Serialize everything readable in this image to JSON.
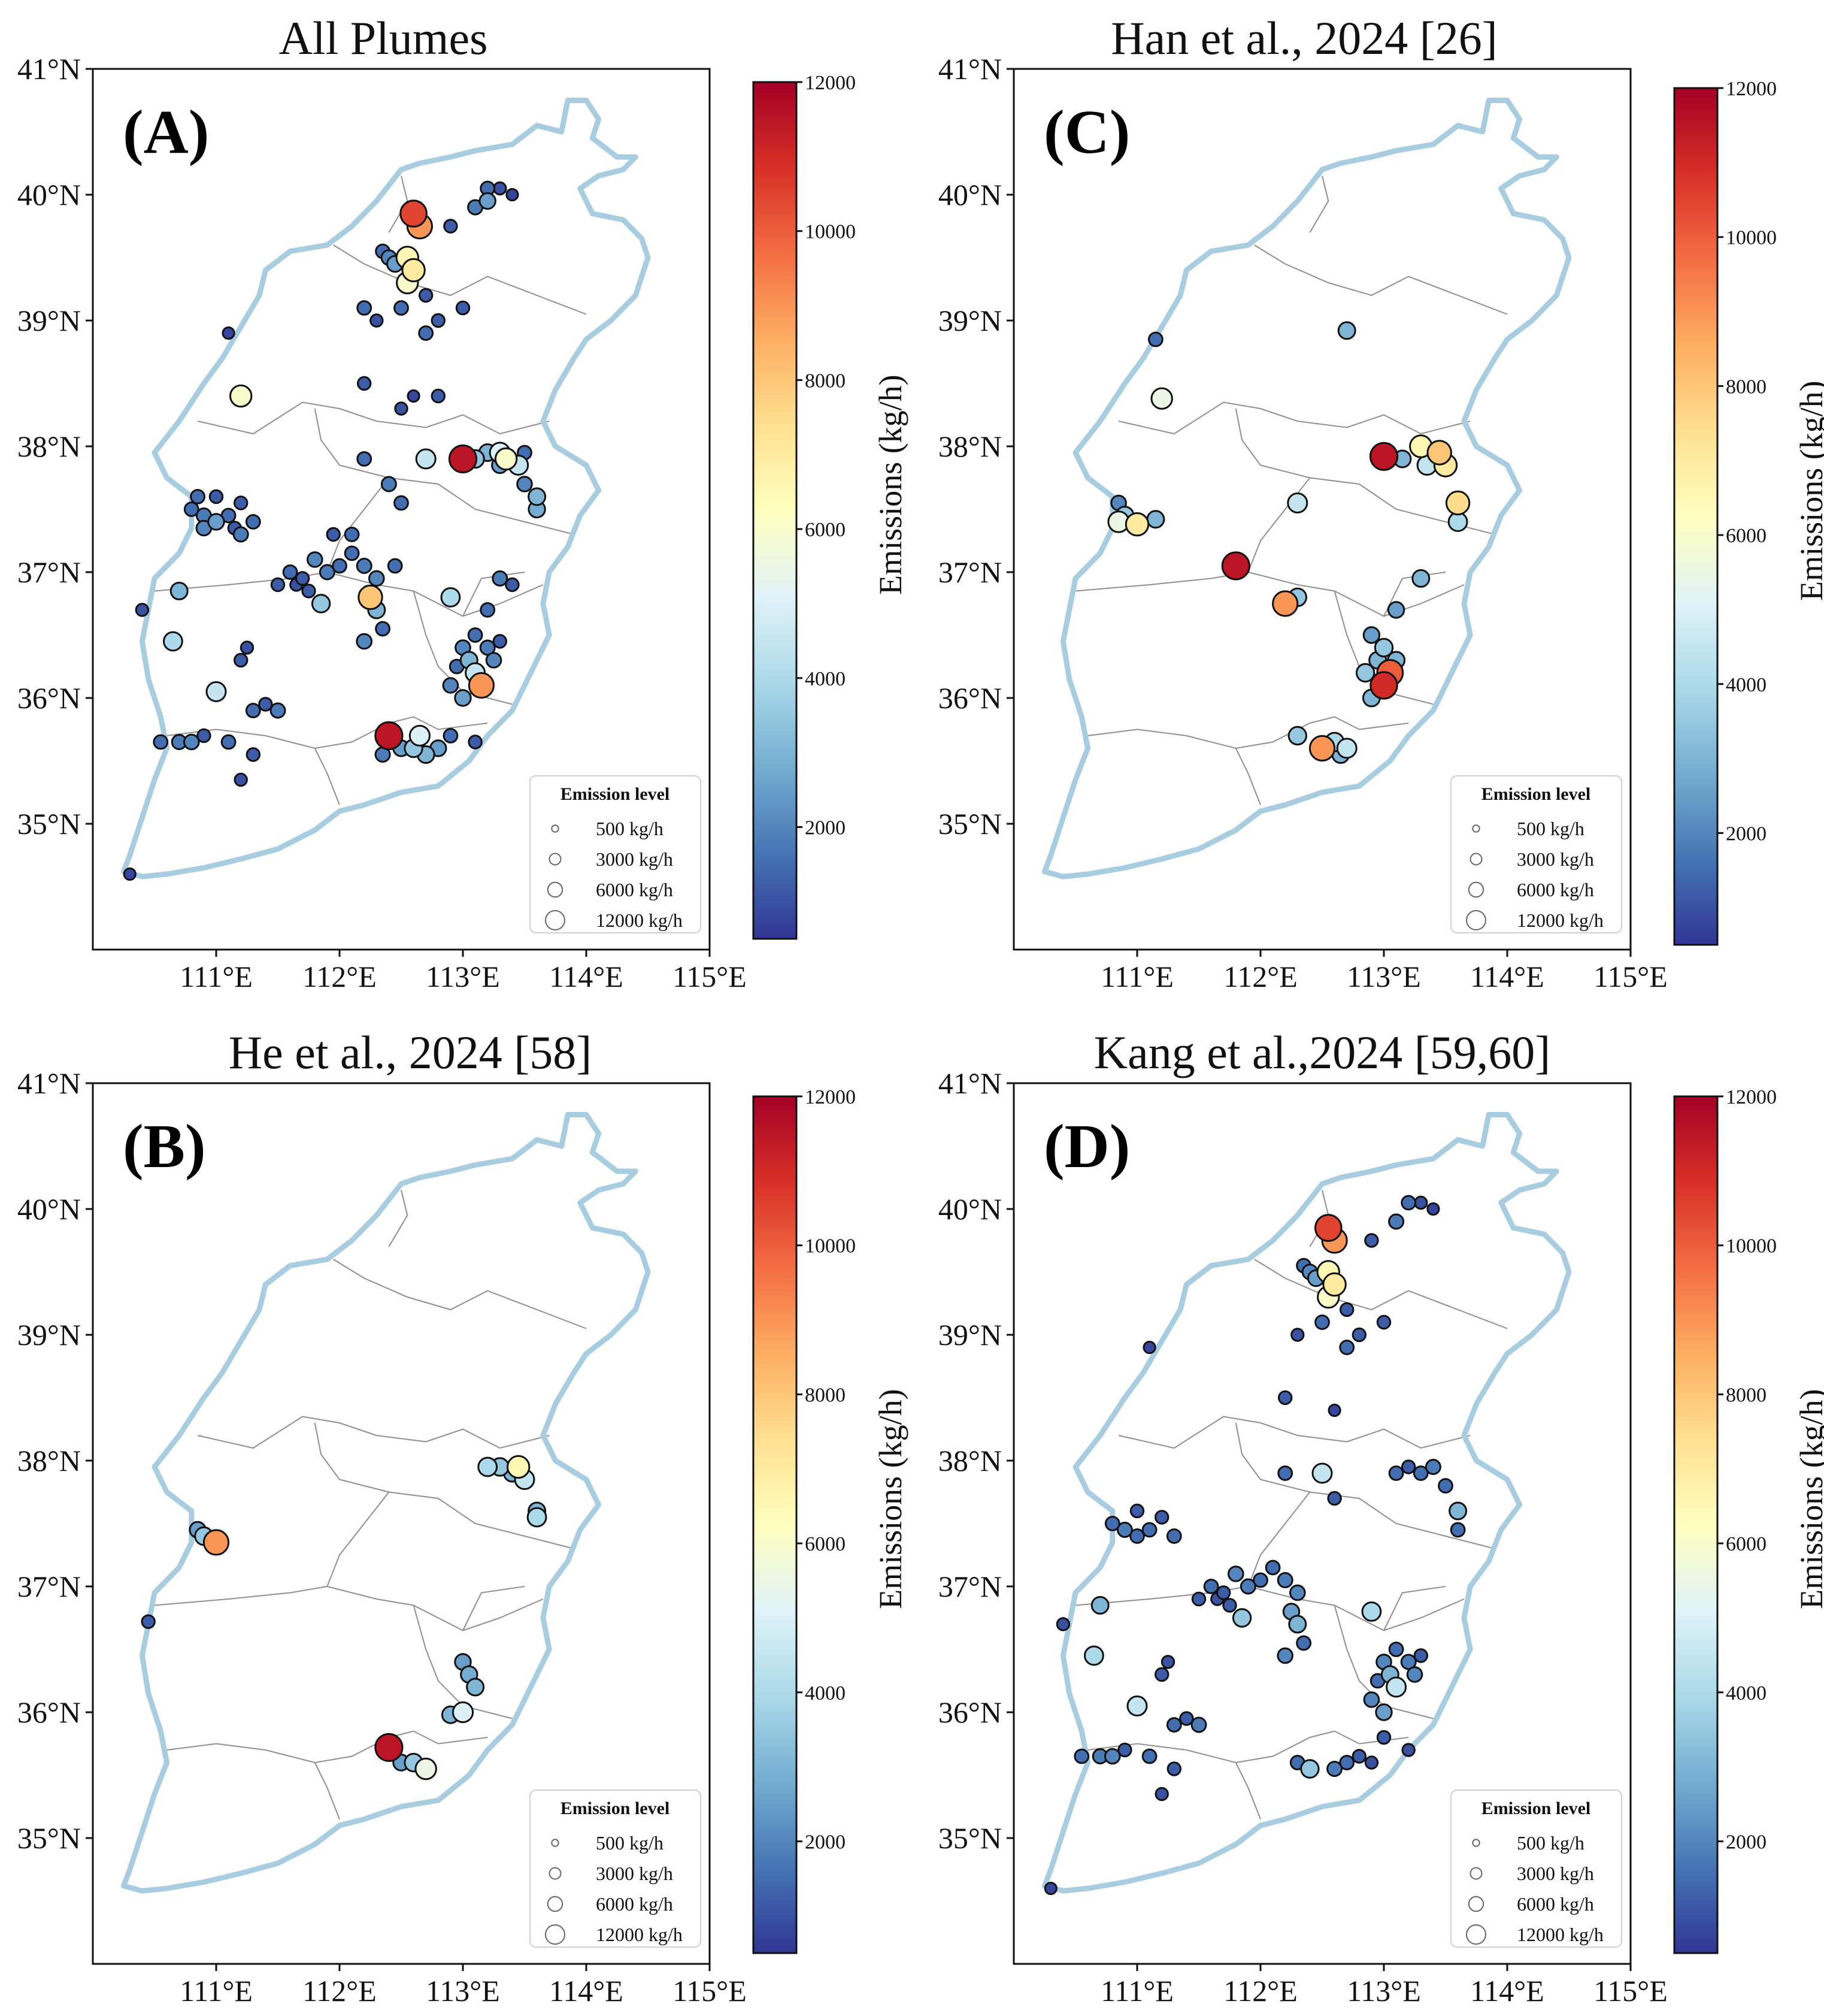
{
  "colors": {
    "outline": "#a9cde0",
    "boundary": "#8f8f8f",
    "frame": "#111111",
    "colormap": [
      "#313695",
      "#4575b4",
      "#74add1",
      "#abd9e9",
      "#e0f3f8",
      "#ffffbf",
      "#fee090",
      "#fdae61",
      "#f46d43",
      "#d73027",
      "#a50026"
    ]
  },
  "axes": {
    "x_ticks": [
      "111°E",
      "112°E",
      "113°E",
      "114°E",
      "115°E"
    ],
    "x_tick_values": [
      111,
      112,
      113,
      114,
      115
    ],
    "y_ticks": [
      "41°N",
      "40°N",
      "39°N",
      "38°N",
      "37°N",
      "36°N",
      "35°N"
    ],
    "y_tick_values": [
      41,
      40,
      39,
      38,
      37,
      36,
      35
    ],
    "lon_range": [
      110.0,
      115.0
    ],
    "lat_range": [
      34.0,
      41.0
    ]
  },
  "colorbar": {
    "label": "Emissions (kg/h)",
    "ticks": [
      "12000",
      "10000",
      "8000",
      "6000",
      "4000",
      "2000"
    ],
    "tick_values": [
      12000,
      10000,
      8000,
      6000,
      4000,
      2000
    ],
    "range": [
      500,
      12000
    ]
  },
  "legend": {
    "title": "Emission level",
    "items": [
      "500 kg/h",
      "3000 kg/h",
      "6000 kg/h",
      "12000 kg/h"
    ],
    "values": [
      500,
      3000,
      6000,
      12000
    ]
  },
  "panels": [
    {
      "id": "A",
      "label": "(A)",
      "title": "All Plumes",
      "points": [
        [
          112.6,
          39.85,
          10500
        ],
        [
          112.65,
          39.75,
          9000
        ],
        [
          112.55,
          39.5,
          6500
        ],
        [
          112.6,
          39.4,
          7000
        ],
        [
          112.55,
          39.3,
          6000
        ],
        [
          112.4,
          39.5,
          2000
        ],
        [
          112.45,
          39.45,
          2500
        ],
        [
          112.35,
          39.55,
          1500
        ],
        [
          112.9,
          39.75,
          1200
        ],
        [
          113.1,
          39.9,
          1800
        ],
        [
          113.2,
          40.05,
          1500
        ],
        [
          113.3,
          40.05,
          1000
        ],
        [
          113.4,
          40.0,
          800
        ],
        [
          113.2,
          39.95,
          2500
        ],
        [
          112.5,
          39.1,
          1500
        ],
        [
          112.7,
          39.2,
          1200
        ],
        [
          112.8,
          39.0,
          1200
        ],
        [
          112.7,
          38.9,
          1500
        ],
        [
          112.3,
          39.0,
          1000
        ],
        [
          112.2,
          39.1,
          1500
        ],
        [
          113.0,
          39.1,
          1200
        ],
        [
          111.1,
          38.9,
          800
        ],
        [
          111.2,
          38.4,
          6000
        ],
        [
          112.2,
          38.5,
          1200
        ],
        [
          112.6,
          38.4,
          800
        ],
        [
          112.5,
          38.3,
          1000
        ],
        [
          112.8,
          38.4,
          1200
        ],
        [
          112.2,
          37.9,
          1500
        ],
        [
          112.4,
          37.7,
          1800
        ],
        [
          112.5,
          37.55,
          1500
        ],
        [
          112.7,
          37.9,
          4500
        ],
        [
          113.0,
          37.9,
          11500
        ],
        [
          113.1,
          37.9,
          3500
        ],
        [
          113.2,
          37.95,
          3000
        ],
        [
          113.3,
          37.95,
          5000
        ],
        [
          113.35,
          37.9,
          6000
        ],
        [
          113.45,
          37.85,
          4500
        ],
        [
          113.3,
          37.85,
          2500
        ],
        [
          113.5,
          37.95,
          1500
        ],
        [
          113.6,
          37.6,
          3000
        ],
        [
          113.6,
          37.5,
          2800
        ],
        [
          113.5,
          37.7,
          2000
        ],
        [
          110.8,
          37.5,
          1500
        ],
        [
          110.9,
          37.45,
          1800
        ],
        [
          111.0,
          37.4,
          2500
        ],
        [
          110.9,
          37.35,
          2000
        ],
        [
          111.1,
          37.45,
          1500
        ],
        [
          111.2,
          37.55,
          1200
        ],
        [
          111.3,
          37.4,
          1500
        ],
        [
          111.0,
          37.6,
          1200
        ],
        [
          110.85,
          37.6,
          1500
        ],
        [
          111.15,
          37.35,
          1200
        ],
        [
          111.2,
          37.3,
          1800
        ],
        [
          111.6,
          37.0,
          1500
        ],
        [
          111.7,
          36.95,
          1200
        ],
        [
          111.8,
          37.1,
          2000
        ],
        [
          111.9,
          37.0,
          1800
        ],
        [
          112.0,
          37.05,
          1500
        ],
        [
          111.75,
          36.85,
          1200
        ],
        [
          111.65,
          36.9,
          1000
        ],
        [
          112.1,
          37.15,
          1500
        ],
        [
          112.2,
          37.05,
          1800
        ],
        [
          112.3,
          36.95,
          2000
        ],
        [
          111.5,
          36.9,
          1200
        ],
        [
          111.85,
          36.75,
          3500
        ],
        [
          112.25,
          36.8,
          8000
        ],
        [
          112.3,
          36.7,
          3000
        ],
        [
          112.35,
          36.55,
          1500
        ],
        [
          112.2,
          36.45,
          2000
        ],
        [
          111.95,
          37.3,
          1200
        ],
        [
          112.1,
          37.3,
          1500
        ],
        [
          112.45,
          37.05,
          1500
        ],
        [
          112.9,
          36.8,
          4000
        ],
        [
          113.0,
          36.4,
          2000
        ],
        [
          113.05,
          36.3,
          3000
        ],
        [
          113.1,
          36.2,
          4500
        ],
        [
          113.15,
          36.1,
          9000
        ],
        [
          113.0,
          36.0,
          2500
        ],
        [
          112.9,
          36.1,
          2000
        ],
        [
          112.95,
          36.25,
          1500
        ],
        [
          113.2,
          36.4,
          1800
        ],
        [
          113.25,
          36.3,
          2000
        ],
        [
          113.1,
          36.5,
          1500
        ],
        [
          113.3,
          36.45,
          1200
        ],
        [
          113.2,
          36.7,
          1500
        ],
        [
          113.3,
          36.95,
          1800
        ],
        [
          113.4,
          36.9,
          1200
        ],
        [
          110.4,
          36.7,
          1000
        ],
        [
          110.7,
          36.85,
          3000
        ],
        [
          110.65,
          36.45,
          4000
        ],
        [
          111.0,
          36.05,
          4500
        ],
        [
          111.3,
          35.9,
          1500
        ],
        [
          111.4,
          35.95,
          1200
        ],
        [
          111.5,
          35.9,
          1800
        ],
        [
          111.2,
          36.3,
          1200
        ],
        [
          111.25,
          36.4,
          1000
        ],
        [
          110.55,
          35.65,
          1500
        ],
        [
          110.7,
          35.65,
          1800
        ],
        [
          110.8,
          35.65,
          2000
        ],
        [
          110.9,
          35.7,
          1200
        ],
        [
          111.1,
          35.65,
          1500
        ],
        [
          111.3,
          35.55,
          1200
        ],
        [
          111.2,
          35.35,
          1000
        ],
        [
          110.3,
          34.6,
          800
        ],
        [
          112.4,
          35.7,
          11500
        ],
        [
          112.5,
          35.6,
          2500
        ],
        [
          112.6,
          35.6,
          3500
        ],
        [
          112.7,
          35.55,
          3000
        ],
        [
          112.8,
          35.6,
          2500
        ],
        [
          112.35,
          35.55,
          1800
        ],
        [
          112.65,
          35.7,
          5000
        ],
        [
          112.9,
          35.7,
          1500
        ],
        [
          113.1,
          35.65,
          1200
        ]
      ]
    },
    {
      "id": "C",
      "label": "(C)",
      "title": "Han et al., 2024 [26]",
      "points": [
        [
          111.15,
          38.85,
          1500
        ],
        [
          112.7,
          38.92,
          3000
        ],
        [
          111.2,
          38.38,
          5500
        ],
        [
          110.85,
          37.55,
          2000
        ],
        [
          110.9,
          37.45,
          3500
        ],
        [
          111.0,
          37.38,
          7000
        ],
        [
          110.85,
          37.4,
          5500
        ],
        [
          111.15,
          37.42,
          3000
        ],
        [
          111.8,
          37.05,
          11500
        ],
        [
          112.3,
          37.55,
          4500
        ],
        [
          112.2,
          36.75,
          9000
        ],
        [
          112.3,
          36.8,
          3500
        ],
        [
          113.0,
          37.92,
          11500
        ],
        [
          113.15,
          37.9,
          3000
        ],
        [
          113.3,
          38.0,
          6500
        ],
        [
          113.45,
          37.95,
          8000
        ],
        [
          113.5,
          37.85,
          7000
        ],
        [
          113.35,
          37.85,
          4500
        ],
        [
          113.6,
          37.55,
          7500
        ],
        [
          113.6,
          37.4,
          4000
        ],
        [
          113.3,
          36.95,
          3000
        ],
        [
          113.1,
          36.7,
          2500
        ],
        [
          112.9,
          36.5,
          2500
        ],
        [
          113.0,
          36.4,
          3500
        ],
        [
          112.95,
          36.3,
          3000
        ],
        [
          113.05,
          36.2,
          10000
        ],
        [
          113.0,
          36.1,
          11000
        ],
        [
          112.9,
          36.0,
          3000
        ],
        [
          112.85,
          36.2,
          3500
        ],
        [
          113.1,
          36.3,
          3000
        ],
        [
          112.3,
          35.7,
          3500
        ],
        [
          112.5,
          35.6,
          9000
        ],
        [
          112.6,
          35.65,
          4000
        ],
        [
          112.7,
          35.6,
          4500
        ],
        [
          112.65,
          35.55,
          3000
        ]
      ]
    },
    {
      "id": "B",
      "label": "(B)",
      "title": "He et al., 2024 [58]",
      "points": [
        [
          110.85,
          37.45,
          2500
        ],
        [
          110.9,
          37.4,
          3500
        ],
        [
          111.0,
          37.35,
          9000
        ],
        [
          110.45,
          36.72,
          1200
        ],
        [
          113.2,
          37.95,
          4000
        ],
        [
          113.3,
          37.95,
          3500
        ],
        [
          113.4,
          37.9,
          3000
        ],
        [
          113.45,
          37.95,
          6500
        ],
        [
          113.5,
          37.85,
          4500
        ],
        [
          113.6,
          37.6,
          3000
        ],
        [
          113.6,
          37.55,
          4000
        ],
        [
          113.0,
          36.4,
          2500
        ],
        [
          113.05,
          36.3,
          2800
        ],
        [
          113.1,
          36.2,
          3000
        ],
        [
          113.0,
          36.0,
          5000
        ],
        [
          112.9,
          35.98,
          3000
        ],
        [
          112.4,
          35.72,
          11500
        ],
        [
          112.5,
          35.6,
          2500
        ],
        [
          112.6,
          35.6,
          3500
        ],
        [
          112.7,
          35.55,
          5500
        ]
      ]
    },
    {
      "id": "D",
      "label": "(D)",
      "title": "Kang et al.,2024 [59,60]",
      "points": [
        [
          112.55,
          39.85,
          10500
        ],
        [
          112.6,
          39.75,
          9000
        ],
        [
          112.55,
          39.5,
          6500
        ],
        [
          112.6,
          39.4,
          7000
        ],
        [
          112.55,
          39.3,
          6000
        ],
        [
          112.4,
          39.5,
          2000
        ],
        [
          112.45,
          39.45,
          2500
        ],
        [
          112.35,
          39.55,
          1500
        ],
        [
          112.9,
          39.75,
          1200
        ],
        [
          113.1,
          39.9,
          1800
        ],
        [
          113.2,
          40.05,
          1500
        ],
        [
          113.3,
          40.05,
          1000
        ],
        [
          113.4,
          40.0,
          800
        ],
        [
          112.5,
          39.1,
          1500
        ],
        [
          112.7,
          39.2,
          1200
        ],
        [
          112.8,
          39.0,
          1200
        ],
        [
          112.7,
          38.9,
          1500
        ],
        [
          112.3,
          39.0,
          1000
        ],
        [
          113.0,
          39.1,
          1200
        ],
        [
          111.1,
          38.9,
          800
        ],
        [
          112.2,
          38.5,
          1200
        ],
        [
          112.6,
          38.4,
          800
        ],
        [
          112.2,
          37.9,
          1500
        ],
        [
          112.5,
          37.9,
          4500
        ],
        [
          112.6,
          37.7,
          1200
        ],
        [
          113.1,
          37.9,
          1500
        ],
        [
          113.2,
          37.95,
          1200
        ],
        [
          113.3,
          37.9,
          1500
        ],
        [
          113.4,
          37.95,
          1800
        ],
        [
          113.5,
          37.8,
          1500
        ],
        [
          113.6,
          37.6,
          3000
        ],
        [
          113.6,
          37.45,
          1500
        ],
        [
          110.8,
          37.5,
          1500
        ],
        [
          110.9,
          37.45,
          1800
        ],
        [
          111.0,
          37.4,
          1500
        ],
        [
          111.1,
          37.45,
          1500
        ],
        [
          111.2,
          37.55,
          1200
        ],
        [
          111.3,
          37.4,
          1500
        ],
        [
          111.0,
          37.6,
          1200
        ],
        [
          111.6,
          37.0,
          1500
        ],
        [
          111.7,
          36.95,
          1200
        ],
        [
          111.8,
          37.1,
          2000
        ],
        [
          111.9,
          37.0,
          1800
        ],
        [
          112.0,
          37.05,
          1500
        ],
        [
          111.75,
          36.85,
          1200
        ],
        [
          111.65,
          36.9,
          1000
        ],
        [
          112.1,
          37.15,
          1500
        ],
        [
          112.2,
          37.05,
          1800
        ],
        [
          112.3,
          36.95,
          2000
        ],
        [
          111.5,
          36.9,
          1200
        ],
        [
          111.85,
          36.75,
          3500
        ],
        [
          112.25,
          36.8,
          2500
        ],
        [
          112.3,
          36.7,
          3000
        ],
        [
          112.35,
          36.55,
          1500
        ],
        [
          112.2,
          36.45,
          2000
        ],
        [
          112.9,
          36.8,
          4000
        ],
        [
          113.0,
          36.4,
          2000
        ],
        [
          113.05,
          36.3,
          3000
        ],
        [
          113.1,
          36.2,
          4500
        ],
        [
          113.0,
          36.0,
          2500
        ],
        [
          112.9,
          36.1,
          2000
        ],
        [
          112.95,
          36.25,
          1500
        ],
        [
          113.2,
          36.4,
          1800
        ],
        [
          113.25,
          36.3,
          2000
        ],
        [
          113.1,
          36.5,
          1500
        ],
        [
          113.3,
          36.45,
          1200
        ],
        [
          113.0,
          35.8,
          1200
        ],
        [
          113.2,
          35.7,
          1000
        ],
        [
          110.4,
          36.7,
          1000
        ],
        [
          110.7,
          36.85,
          3000
        ],
        [
          110.65,
          36.45,
          4000
        ],
        [
          111.0,
          36.05,
          4500
        ],
        [
          111.3,
          35.9,
          1500
        ],
        [
          111.4,
          35.95,
          1200
        ],
        [
          111.5,
          35.9,
          1800
        ],
        [
          111.2,
          36.3,
          1200
        ],
        [
          111.25,
          36.4,
          1000
        ],
        [
          110.55,
          35.65,
          1500
        ],
        [
          110.7,
          35.65,
          1800
        ],
        [
          110.8,
          35.65,
          2000
        ],
        [
          110.9,
          35.7,
          1200
        ],
        [
          111.1,
          35.65,
          1500
        ],
        [
          111.3,
          35.55,
          1200
        ],
        [
          111.2,
          35.35,
          1000
        ],
        [
          110.3,
          34.6,
          800
        ],
        [
          112.3,
          35.6,
          1500
        ],
        [
          112.4,
          35.55,
          3500
        ],
        [
          112.6,
          35.55,
          1800
        ],
        [
          112.7,
          35.6,
          1500
        ],
        [
          112.8,
          35.65,
          1200
        ],
        [
          112.9,
          35.6,
          1000
        ]
      ]
    }
  ]
}
